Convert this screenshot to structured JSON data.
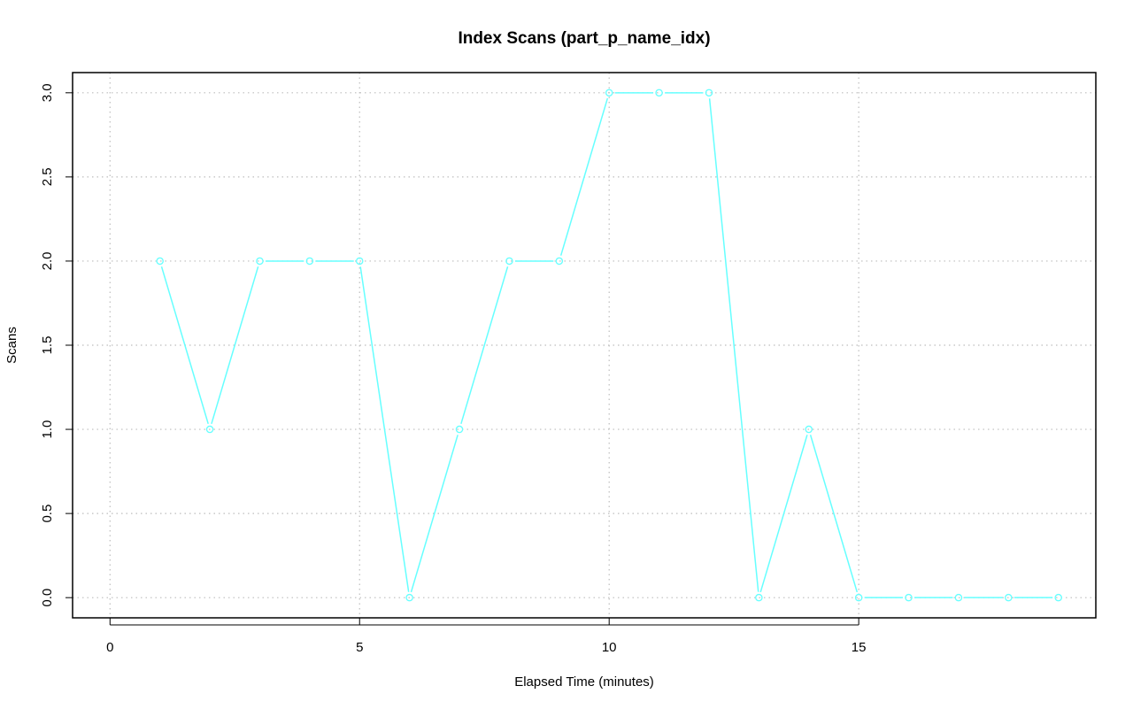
{
  "chart_data": {
    "type": "line",
    "title": "Index Scans (part_p_name_idx)",
    "xlabel": "Elapsed Time (minutes)",
    "ylabel": "Scans",
    "xlim": [
      -0.75,
      19.75
    ],
    "ylim": [
      -0.12,
      3.12
    ],
    "x_ticks": [
      0,
      5,
      10,
      15
    ],
    "x_tick_labels": [
      "0",
      "5",
      "10",
      "15"
    ],
    "y_ticks": [
      0,
      0.5,
      1,
      1.5,
      2,
      2.5,
      3
    ],
    "y_tick_labels": [
      "0.0",
      "0.5",
      "1.0",
      "1.5",
      "2.0",
      "2.5",
      "3.0"
    ],
    "grid": true,
    "series": [
      {
        "color": "#66ffff",
        "marker": "circle",
        "x": [
          1,
          2,
          3,
          4,
          5,
          6,
          7,
          8,
          9,
          10,
          11,
          12,
          13,
          14,
          15,
          16,
          17,
          18,
          19
        ],
        "values": [
          2,
          1,
          2,
          2,
          2,
          0,
          1,
          2,
          2,
          3,
          3,
          3,
          0,
          1,
          0,
          0,
          0,
          0,
          0
        ]
      }
    ]
  }
}
